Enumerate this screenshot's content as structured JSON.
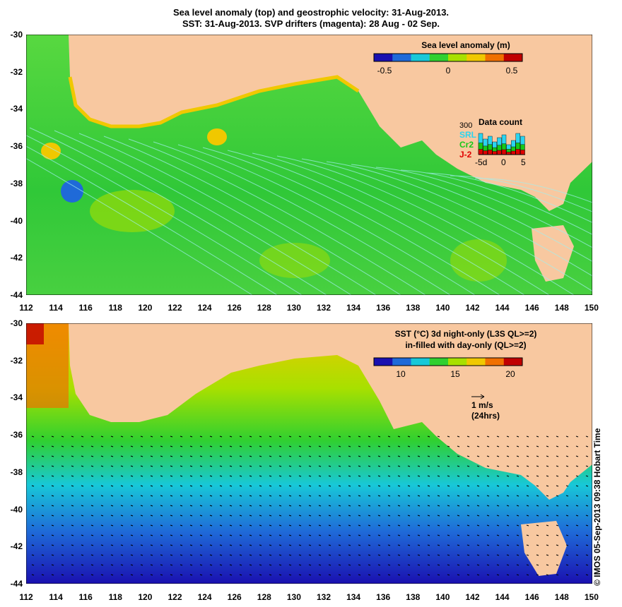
{
  "title_line1": "Sea level anomaly (top) and geostrophic velocity: 31-Aug-2013.",
  "title_line2": "SST: 31-Aug-2013. SVP drifters (magenta): 28 Aug - 02 Sep.",
  "x_ticks": [
    "112",
    "114",
    "116",
    "118",
    "120",
    "122",
    "124",
    "126",
    "128",
    "130",
    "132",
    "134",
    "136",
    "138",
    "140",
    "142",
    "144",
    "146",
    "148",
    "150"
  ],
  "y_ticks": [
    "-30",
    "-32",
    "-34",
    "-36",
    "-38",
    "-40",
    "-42",
    "-44"
  ],
  "top_panel": {
    "colorbar_title": "Sea level anomaly (m)",
    "colorbar_ticks": [
      "-0.5",
      "0",
      "0.5"
    ],
    "colors": [
      "#1a10b0",
      "#1f6ad8",
      "#18c8d8",
      "#30d030",
      "#a8e000",
      "#f0c800",
      "#f07000",
      "#c00000"
    ],
    "inset": {
      "title": "Data count",
      "y_tick": "300",
      "series": [
        "SRL",
        "Cr2",
        "J-2"
      ],
      "series_colors": [
        "#2ad4f0",
        "#18c818",
        "#e00000"
      ],
      "x_ticks": [
        "-5d",
        "0",
        "5"
      ]
    }
  },
  "bottom_panel": {
    "colorbar_title_line1": "SST (°C)  3d night-only (L3S QL>=2)",
    "colorbar_title_line2": "in-filled with day-only (QL>=2)",
    "colorbar_ticks": [
      "10",
      "15",
      "20"
    ],
    "colors": [
      "#1a10b0",
      "#1f6ad8",
      "#18c8d8",
      "#30d030",
      "#a8e000",
      "#f0c800",
      "#f07000",
      "#c00000"
    ],
    "velocity_scale_line1": "1 m/s",
    "velocity_scale_line2": "(24hrs)"
  },
  "land_color": "#f8c8a0",
  "credit": "© IMOS 05-Sep-2013 09:38 Hobart Time"
}
